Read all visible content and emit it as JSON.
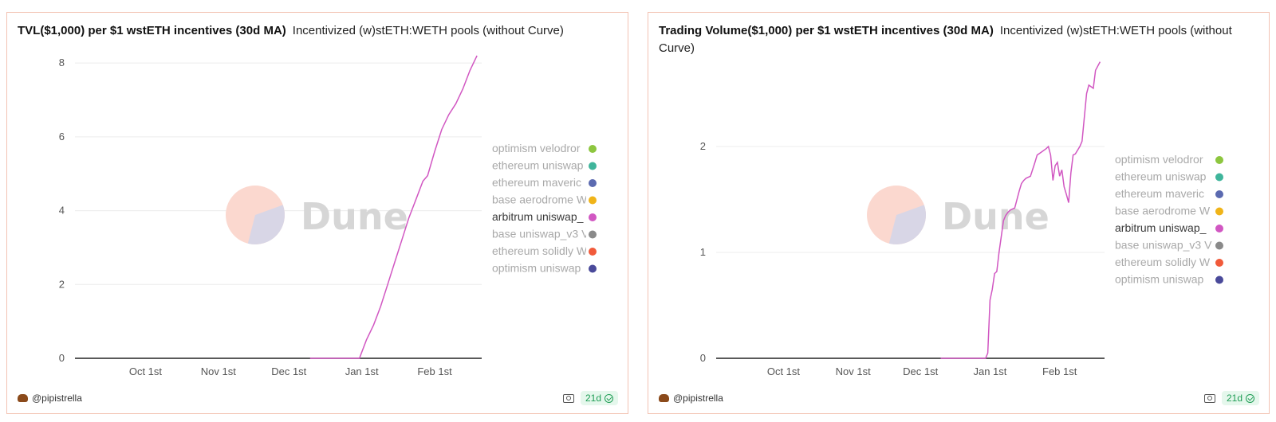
{
  "colors": {
    "active_series": "#d157c2",
    "legend": [
      "#8dc63f",
      "#3fb59b",
      "#5b6ab0",
      "#f0b419",
      "#d157c2",
      "#8a8a8a",
      "#f15a3a",
      "#4a4a9a"
    ]
  },
  "watermark": {
    "text": "Dune"
  },
  "chart_data": [
    {
      "type": "line",
      "title": "TVL($1,000) per $1 wstETH incentives (30d MA)",
      "subtitle": "Incentivized (w)stETH:WETH pools (without Curve)",
      "xlabel": "",
      "ylabel": "",
      "x_ticks": [
        "Oct 1st",
        "Nov 1st",
        "Dec 1st",
        "Jan 1st",
        "Feb 1st"
      ],
      "y_ticks": [
        0,
        2,
        4,
        6,
        8
      ],
      "ylim": [
        0,
        8.5
      ],
      "xlim": [
        "2023-09-01",
        "2024-02-21"
      ],
      "legend_position": "right",
      "legend": [
        "optimism velodror",
        "ethereum uniswap",
        "ethereum maveric",
        "base aerodrome W",
        "arbitrum uniswap_",
        "base uniswap_v3 V",
        "ethereum solidly W",
        "optimism uniswap"
      ],
      "active_legend_index": 4,
      "series": [
        {
          "name": "arbitrum uniswap_",
          "points": [
            [
              "2023-12-10",
              0
            ],
            [
              "2023-12-20",
              0
            ],
            [
              "2023-12-31",
              0
            ],
            [
              "2024-01-03",
              0.5
            ],
            [
              "2024-01-06",
              0.9
            ],
            [
              "2024-01-09",
              1.4
            ],
            [
              "2024-01-12",
              2.0
            ],
            [
              "2024-01-15",
              2.6
            ],
            [
              "2024-01-18",
              3.2
            ],
            [
              "2024-01-21",
              3.8
            ],
            [
              "2024-01-24",
              4.3
            ],
            [
              "2024-01-27",
              4.8
            ],
            [
              "2024-01-29",
              4.95
            ],
            [
              "2024-02-01",
              5.6
            ],
            [
              "2024-02-04",
              6.2
            ],
            [
              "2024-02-07",
              6.6
            ],
            [
              "2024-02-10",
              6.9
            ],
            [
              "2024-02-13",
              7.3
            ],
            [
              "2024-02-16",
              7.8
            ],
            [
              "2024-02-19",
              8.2
            ]
          ]
        }
      ]
    },
    {
      "type": "line",
      "title": "Trading Volume($1,000) per $1 wstETH incentives (30d MA)",
      "subtitle": "Incentivized (w)stETH:WETH pools (without Curve)",
      "xlabel": "",
      "ylabel": "",
      "x_ticks": [
        "Oct 1st",
        "Nov 1st",
        "Dec 1st",
        "Jan 1st",
        "Feb 1st"
      ],
      "y_ticks": [
        0,
        1,
        2
      ],
      "ylim": [
        0,
        2.85
      ],
      "xlim": [
        "2023-09-01",
        "2024-02-21"
      ],
      "legend_position": "right",
      "legend": [
        "optimism velodror",
        "ethereum uniswap",
        "ethereum maveric",
        "base aerodrome W",
        "arbitrum uniswap_",
        "base uniswap_v3 V",
        "ethereum solidly W",
        "optimism uniswap"
      ],
      "active_legend_index": 4,
      "series": [
        {
          "name": "arbitrum uniswap_",
          "points": [
            [
              "2023-12-10",
              0
            ],
            [
              "2023-12-20",
              0
            ],
            [
              "2023-12-30",
              0
            ],
            [
              "2023-12-31",
              0.05
            ],
            [
              "2024-01-01",
              0.55
            ],
            [
              "2024-01-02",
              0.65
            ],
            [
              "2024-01-03",
              0.8
            ],
            [
              "2024-01-04",
              0.82
            ],
            [
              "2024-01-05",
              1.0
            ],
            [
              "2024-01-06",
              1.15
            ],
            [
              "2024-01-07",
              1.3
            ],
            [
              "2024-01-08",
              1.35
            ],
            [
              "2024-01-09",
              1.38
            ],
            [
              "2024-01-10",
              1.4
            ],
            [
              "2024-01-12",
              1.42
            ],
            [
              "2024-01-14",
              1.58
            ],
            [
              "2024-01-15",
              1.65
            ],
            [
              "2024-01-16",
              1.68
            ],
            [
              "2024-01-17",
              1.7
            ],
            [
              "2024-01-19",
              1.72
            ],
            [
              "2024-01-21",
              1.85
            ],
            [
              "2024-01-22",
              1.92
            ],
            [
              "2024-01-24",
              1.95
            ],
            [
              "2024-01-26",
              1.98
            ],
            [
              "2024-01-27",
              2.0
            ],
            [
              "2024-01-28",
              1.92
            ],
            [
              "2024-01-29",
              1.68
            ],
            [
              "2024-01-30",
              1.82
            ],
            [
              "2024-01-31",
              1.85
            ],
            [
              "2024-02-01",
              1.72
            ],
            [
              "2024-02-02",
              1.78
            ],
            [
              "2024-02-03",
              1.62
            ],
            [
              "2024-02-04",
              1.55
            ],
            [
              "2024-02-05",
              1.47
            ],
            [
              "2024-02-06",
              1.75
            ],
            [
              "2024-02-07",
              1.92
            ],
            [
              "2024-02-08",
              1.93
            ],
            [
              "2024-02-10",
              2.0
            ],
            [
              "2024-02-11",
              2.05
            ],
            [
              "2024-02-13",
              2.5
            ],
            [
              "2024-02-14",
              2.58
            ],
            [
              "2024-02-16",
              2.55
            ],
            [
              "2024-02-17",
              2.72
            ],
            [
              "2024-02-19",
              2.8
            ]
          ]
        }
      ]
    }
  ],
  "panels": [
    {
      "title": "TVL($1,000) per $1 wstETH incentives (30d MA)",
      "subtitle": "Incentivized (w)stETH:WETH pools (without Curve)",
      "author": "@pipistrella",
      "age": "21d"
    },
    {
      "title": "Trading Volume($1,000) per $1 wstETH incentives (30d MA)",
      "subtitle": "Incentivized (w)stETH:WETH pools (without Curve)",
      "author": "@pipistrella",
      "age": "21d"
    }
  ]
}
